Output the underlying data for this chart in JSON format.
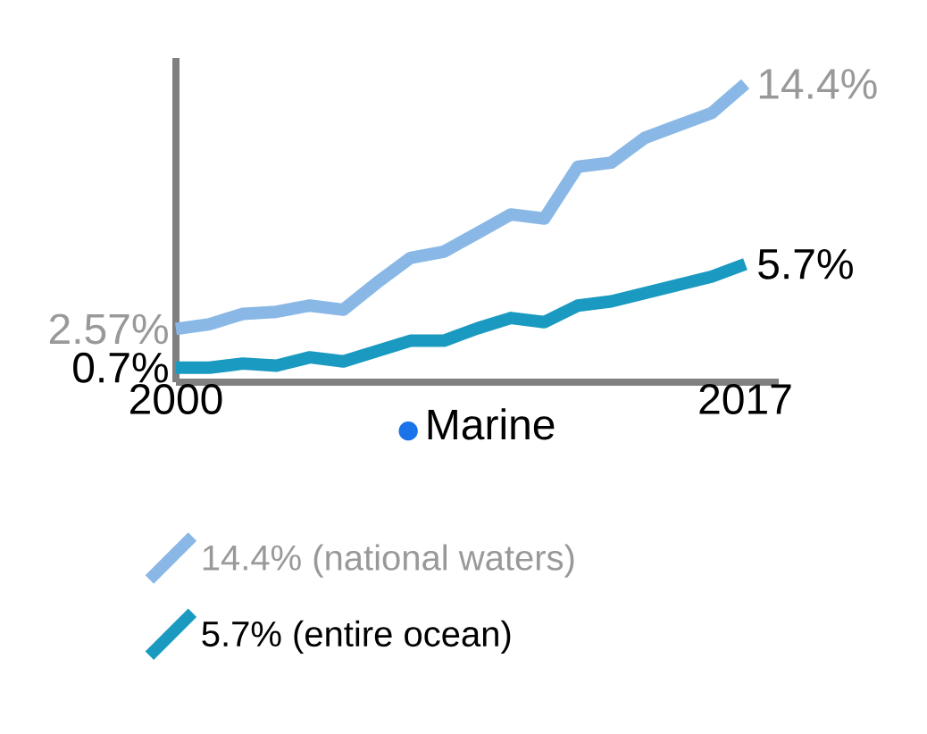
{
  "chart_data": {
    "type": "line",
    "xlabel": "Marine",
    "x": [
      2000,
      2001,
      2002,
      2003,
      2004,
      2005,
      2006,
      2007,
      2008,
      2009,
      2010,
      2011,
      2012,
      2013,
      2014,
      2015,
      2016,
      2017
    ],
    "xlim": [
      2000,
      2018
    ],
    "xticks": [
      2000,
      2017
    ],
    "legend": "bottom",
    "line_style": "solid",
    "marker": "none",
    "series": [
      {
        "name": "14.4% (national waters)",
        "color": "#8ab8e6",
        "values": [
          2.57,
          2.8,
          3.3,
          3.4,
          3.7,
          3.5,
          4.8,
          6.0,
          6.3,
          7.2,
          8.1,
          7.9,
          10.4,
          10.6,
          11.8,
          12.4,
          13.0,
          14.4
        ],
        "value_labels": [
          "2.57%",
          null,
          null,
          null,
          null,
          null,
          null,
          null,
          null,
          null,
          null,
          null,
          null,
          null,
          null,
          null,
          null,
          "14.4%"
        ]
      },
      {
        "name": "5.7% (entire ocean)",
        "color": "#1a9ac0",
        "values": [
          0.7,
          0.7,
          0.9,
          0.8,
          1.2,
          1.0,
          1.5,
          2.0,
          2.0,
          2.6,
          3.1,
          2.9,
          3.7,
          3.9,
          4.3,
          4.7,
          5.1,
          5.7
        ],
        "value_labels": [
          "0.7%",
          null,
          null,
          null,
          null,
          null,
          null,
          null,
          null,
          null,
          null,
          null,
          null,
          null,
          null,
          null,
          null,
          "5.7%"
        ]
      }
    ]
  }
}
